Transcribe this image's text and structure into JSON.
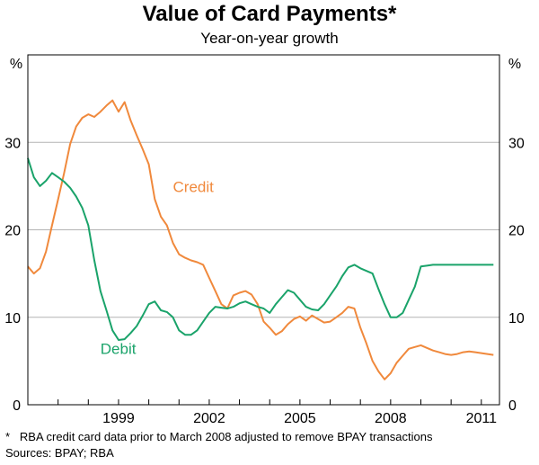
{
  "chart_data": {
    "type": "line",
    "title": "Value of Card Payments*",
    "subtitle": "Year-on-year growth",
    "ylabel_left": "%",
    "ylabel_right": "%",
    "ylim": [
      0,
      40
    ],
    "yticks": [
      0,
      10,
      20,
      30
    ],
    "xlim": [
      1996.0,
      2011.6
    ],
    "xticks": [
      {
        "value": 1999,
        "label": "1999"
      },
      {
        "value": 2002,
        "label": "2002"
      },
      {
        "value": 2005,
        "label": "2005"
      },
      {
        "value": 2008,
        "label": "2008"
      },
      {
        "value": 2011,
        "label": "2011"
      }
    ],
    "grid": true,
    "series": [
      {
        "name": "Credit",
        "color": "#f0893c",
        "x": [
          1996.0,
          1996.2,
          1996.4,
          1996.6,
          1996.8,
          1997.0,
          1997.2,
          1997.4,
          1997.6,
          1997.8,
          1998.0,
          1998.2,
          1998.4,
          1998.6,
          1998.8,
          1999.0,
          1999.2,
          1999.4,
          1999.6,
          1999.8,
          2000.0,
          2000.2,
          2000.4,
          2000.6,
          2000.8,
          2001.0,
          2001.2,
          2001.4,
          2001.6,
          2001.8,
          2002.0,
          2002.2,
          2002.4,
          2002.6,
          2002.8,
          2003.0,
          2003.2,
          2003.4,
          2003.6,
          2003.8,
          2004.0,
          2004.2,
          2004.4,
          2004.6,
          2004.8,
          2005.0,
          2005.2,
          2005.4,
          2005.6,
          2005.8,
          2006.0,
          2006.2,
          2006.4,
          2006.6,
          2006.8,
          2007.0,
          2007.2,
          2007.4,
          2007.6,
          2007.8,
          2008.0,
          2008.2,
          2008.4,
          2008.6,
          2008.8,
          2009.0,
          2009.2,
          2009.4,
          2009.6,
          2009.8,
          2010.0,
          2010.2,
          2010.4,
          2010.6,
          2010.8,
          2011.0,
          2011.2,
          2011.4
        ],
        "values": [
          15.8,
          15.0,
          15.6,
          17.5,
          20.5,
          23.5,
          26.5,
          29.8,
          31.8,
          32.8,
          33.2,
          32.9,
          33.5,
          34.2,
          34.8,
          33.5,
          34.6,
          32.5,
          30.8,
          29.2,
          27.5,
          23.5,
          21.5,
          20.5,
          18.5,
          17.2,
          16.8,
          16.5,
          16.3,
          16.0,
          14.5,
          13.0,
          11.5,
          11.0,
          12.5,
          12.8,
          13.0,
          12.6,
          11.5,
          9.5,
          8.8,
          8.0,
          8.4,
          9.2,
          9.8,
          10.1,
          9.6,
          10.2,
          9.8,
          9.4,
          9.5,
          10.0,
          10.5,
          11.2,
          11.0,
          8.8,
          7.0,
          5.0,
          3.8,
          2.9,
          3.6,
          4.8,
          5.6,
          6.4,
          6.6,
          6.8,
          6.5,
          6.2,
          6.0,
          5.8,
          5.7,
          5.8,
          6.0,
          6.1,
          6.0,
          5.9,
          5.8,
          5.7
        ]
      },
      {
        "name": "Debit",
        "color": "#1aa36a",
        "x": [
          1996.0,
          1996.2,
          1996.4,
          1996.6,
          1996.8,
          1997.0,
          1997.2,
          1997.4,
          1997.6,
          1997.8,
          1998.0,
          1998.2,
          1998.4,
          1998.6,
          1998.8,
          1999.0,
          1999.2,
          1999.4,
          1999.6,
          1999.8,
          2000.0,
          2000.2,
          2000.4,
          2000.6,
          2000.8,
          2001.0,
          2001.2,
          2001.4,
          2001.6,
          2001.8,
          2002.0,
          2002.2,
          2002.4,
          2002.6,
          2002.8,
          2003.0,
          2003.2,
          2003.4,
          2003.6,
          2003.8,
          2004.0,
          2004.2,
          2004.4,
          2004.6,
          2004.8,
          2005.0,
          2005.2,
          2005.4,
          2005.6,
          2005.8,
          2006.0,
          2006.2,
          2006.4,
          2006.6,
          2006.8,
          2007.0,
          2007.2,
          2007.4,
          2007.6,
          2007.8,
          2008.0,
          2008.2,
          2008.4,
          2008.6,
          2008.8,
          2009.0,
          2009.2,
          2009.4,
          2009.6,
          2009.8,
          2010.0,
          2010.2,
          2010.4,
          2010.6,
          2010.8,
          2011.0,
          2011.2,
          2011.4
        ],
        "values": [
          28.2,
          26.0,
          25.0,
          25.6,
          26.5,
          26.0,
          25.5,
          24.8,
          23.8,
          22.5,
          20.5,
          16.5,
          13.0,
          10.8,
          8.5,
          7.4,
          7.5,
          8.2,
          9.0,
          10.2,
          11.5,
          11.8,
          10.8,
          10.6,
          10.0,
          8.5,
          8.0,
          8.0,
          8.5,
          9.5,
          10.5,
          11.2,
          11.1,
          11.0,
          11.2,
          11.6,
          11.8,
          11.5,
          11.2,
          11.0,
          10.5,
          11.5,
          12.3,
          13.1,
          12.8,
          12.0,
          11.2,
          10.9,
          10.8,
          11.5,
          12.5,
          13.5,
          14.7,
          15.7,
          16.0,
          15.6,
          15.3,
          15.0,
          13.2,
          11.5,
          10.0,
          10.0,
          10.5,
          12.0,
          13.5,
          15.8,
          15.9,
          16.0,
          16.0,
          16.0,
          16.0,
          16.0,
          16.0,
          16.0,
          16.0,
          16.0,
          16.0,
          16.0
        ]
      }
    ],
    "annotations": [
      {
        "text": "Credit",
        "x": 2000.8,
        "y": 24.3
      },
      {
        "text": "Debit",
        "x": 1998.4,
        "y": 5.8
      }
    ],
    "footnote": "*   RBA credit card data prior to March 2008 adjusted to remove BPAY transactions",
    "sources": "Sources: BPAY; RBA"
  }
}
